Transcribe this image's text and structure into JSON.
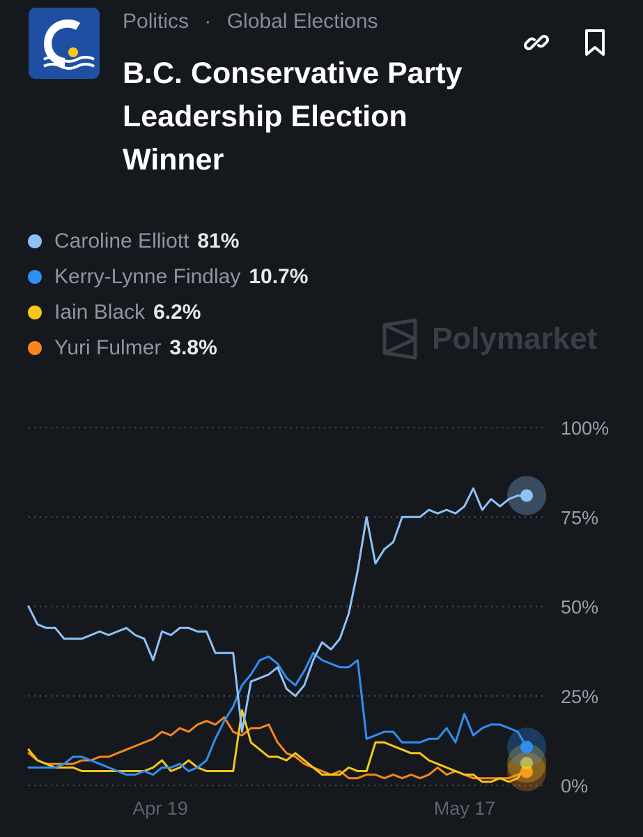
{
  "header": {
    "breadcrumb": [
      "Politics",
      "Global Elections"
    ],
    "breadcrumb_separator": "·",
    "title": "B.C. Conservative Party Leadership Election Winner",
    "logo_icon": "bc-conservative-logo",
    "actions": [
      {
        "icon": "link-icon"
      },
      {
        "icon": "bookmark-icon"
      }
    ]
  },
  "legend": [
    {
      "name": "Caroline Elliott",
      "value": "81%",
      "color": "#8ec2f7"
    },
    {
      "name": "Kerry-Lynne Findlay",
      "value": "10.7%",
      "color": "#2f8ff0"
    },
    {
      "name": "Iain Black",
      "value": "6.2%",
      "color": "#f6c619"
    },
    {
      "name": "Yuri Fulmer",
      "value": "3.8%",
      "color": "#f7861e"
    }
  ],
  "watermark": "Polymarket",
  "chart_data": {
    "type": "line",
    "x_ticks": [
      "Apr 19",
      "May 17"
    ],
    "y_ticks": [
      "0%",
      "25%",
      "50%",
      "75%",
      "100%"
    ],
    "ylim": [
      0,
      100
    ],
    "grid": true,
    "series": [
      {
        "name": "Caroline Elliott",
        "color": "#8ec2f7",
        "values": [
          50,
          45,
          44,
          44,
          41,
          41,
          41,
          42,
          43,
          42,
          43,
          44,
          42,
          41,
          35,
          43,
          42,
          44,
          44,
          43,
          43,
          37,
          37,
          37,
          15,
          29,
          30,
          31,
          33,
          27,
          25,
          28,
          35,
          40,
          38,
          41,
          48,
          60,
          75,
          62,
          66,
          68,
          75,
          75,
          75,
          77,
          76,
          77,
          76,
          78,
          83,
          77,
          80,
          78,
          80,
          81,
          81
        ]
      },
      {
        "name": "Kerry-Lynne Findlay",
        "color": "#2f8ff0",
        "values": [
          5,
          5,
          5,
          5,
          6,
          8,
          8,
          7,
          6,
          5,
          4,
          3,
          3,
          4,
          3,
          5,
          5,
          6,
          4,
          5,
          7,
          13,
          18,
          22,
          28,
          31,
          35,
          36,
          34,
          30,
          28,
          32,
          37,
          35,
          34,
          33,
          33,
          35,
          13,
          14,
          15,
          15,
          12,
          12,
          12,
          13,
          13,
          16,
          12,
          20,
          14,
          16,
          17,
          17,
          16,
          15,
          10.7
        ]
      },
      {
        "name": "Iain Black",
        "color": "#f6c619",
        "values": [
          10,
          7,
          6,
          5,
          5,
          5,
          4,
          4,
          4,
          4,
          4,
          4,
          4,
          4,
          5,
          7,
          4,
          5,
          7,
          5,
          4,
          4,
          4,
          4,
          21,
          12,
          10,
          8,
          8,
          7,
          9,
          7,
          5,
          3,
          3,
          3,
          5,
          4,
          4,
          12,
          12,
          11,
          10,
          9,
          9,
          7,
          6,
          5,
          4,
          3,
          3,
          1,
          1,
          2,
          1,
          2,
          6.2
        ]
      },
      {
        "name": "Yuri Fulmer",
        "color": "#f7861e",
        "values": [
          9,
          7,
          6,
          6,
          6,
          6,
          7,
          7,
          8,
          8,
          9,
          10,
          11,
          12,
          13,
          15,
          14,
          16,
          15,
          17,
          18,
          17,
          19,
          15,
          14,
          16,
          16,
          17,
          12,
          9,
          8,
          6,
          5,
          4,
          3,
          4,
          2,
          2,
          3,
          3,
          2,
          3,
          2,
          3,
          2,
          3,
          5,
          3,
          4,
          3,
          2,
          2,
          2,
          2,
          2,
          3,
          3.8
        ]
      }
    ]
  }
}
